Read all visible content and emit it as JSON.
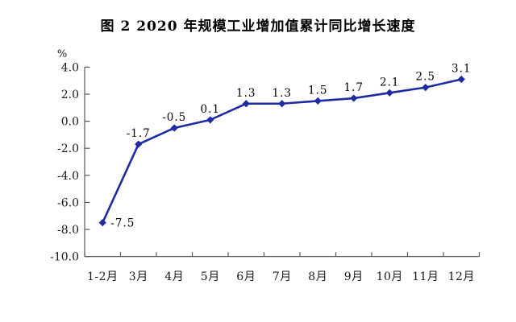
{
  "title": "图 2  2020 年规模工业增加值累计同比增长速度",
  "chart_data": {
    "type": "line",
    "title": "图 2  2020 年规模工业增加值累计同比增长速度",
    "unit_label": "%",
    "categories": [
      "1-2月",
      "3月",
      "4月",
      "5月",
      "6月",
      "7月",
      "8月",
      "9月",
      "10月",
      "11月",
      "12月"
    ],
    "values": [
      -7.5,
      -1.7,
      -0.5,
      0.1,
      1.3,
      1.3,
      1.5,
      1.7,
      2.1,
      2.5,
      3.1
    ],
    "data_labels": [
      "-7.5",
      "-1.7",
      "-0.5",
      "0.1",
      "1.3",
      "1.3",
      "1.5",
      "1.7",
      "2.1",
      "2.5",
      "3.1"
    ],
    "ylim": [
      -10.0,
      4.0
    ],
    "yticks": [
      4.0,
      2.0,
      0.0,
      -2.0,
      -4.0,
      -6.0,
      -8.0,
      -10.0
    ],
    "ytick_labels": [
      "4.0",
      "2.0",
      "0.0",
      "-2.0",
      "-4.0",
      "-6.0",
      "-8.0",
      "-10.0"
    ],
    "line_color": "#1F2BA3",
    "axis_color": "#595959",
    "marker": "diamond",
    "grid": false,
    "legend": "none"
  }
}
